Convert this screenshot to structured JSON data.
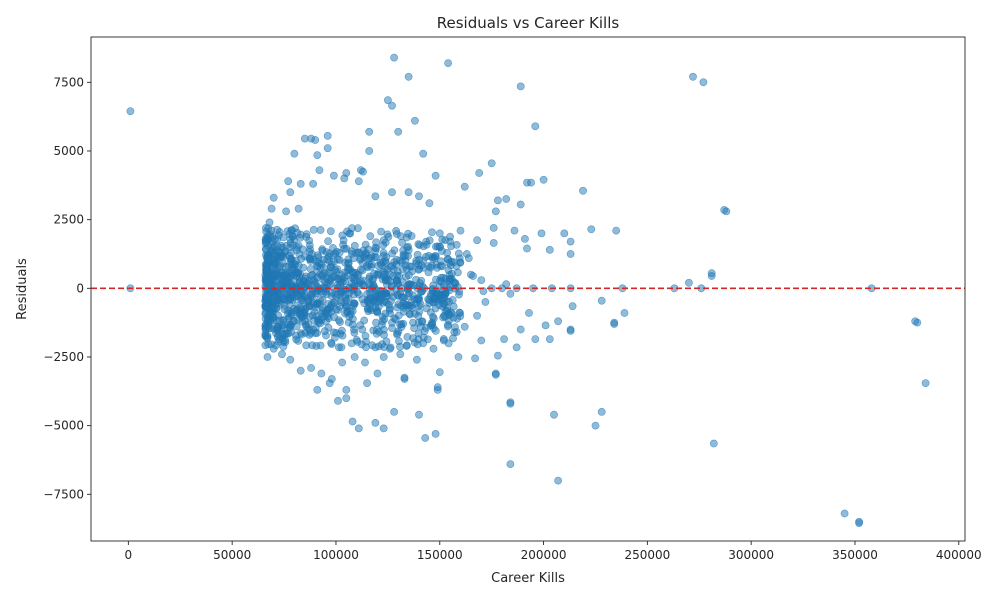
{
  "chart_data": {
    "type": "scatter",
    "title": "Residuals vs Career Kills",
    "xlabel": "Career Kills",
    "ylabel": "Residuals",
    "xlim": [
      -18000,
      403000
    ],
    "ylim": [
      -9200,
      9150
    ],
    "xticks": [
      0,
      50000,
      100000,
      150000,
      200000,
      250000,
      300000,
      350000,
      400000
    ],
    "yticks": [
      -7500,
      -5000,
      -2500,
      0,
      2500,
      5000,
      7500
    ],
    "reference_line": {
      "y": 0,
      "style": "dashed",
      "color": "#d62728"
    },
    "grid": false,
    "point_color": "#1f77b4",
    "point_alpha": 0.5,
    "points": [
      [
        1000,
        6450
      ],
      [
        1000,
        0
      ],
      [
        272000,
        7700
      ],
      [
        277000,
        7500
      ],
      [
        287000,
        2850
      ],
      [
        288000,
        2800
      ],
      [
        281000,
        550
      ],
      [
        281000,
        450
      ],
      [
        270000,
        200
      ],
      [
        263000,
        0
      ],
      [
        276000,
        0
      ],
      [
        358000,
        0
      ],
      [
        379000,
        -1200
      ],
      [
        380000,
        -1250
      ],
      [
        384000,
        -3450
      ],
      [
        282000,
        -5650
      ],
      [
        345000,
        -8200
      ],
      [
        352000,
        -8550
      ],
      [
        352000,
        -8500
      ],
      [
        207000,
        -7000
      ],
      [
        184000,
        -6400
      ],
      [
        225000,
        -5000
      ],
      [
        228000,
        -4500
      ],
      [
        205000,
        -4600
      ],
      [
        184000,
        -4200
      ],
      [
        184000,
        -4150
      ],
      [
        148000,
        -5300
      ],
      [
        143000,
        -5450
      ],
      [
        140000,
        -4600
      ],
      [
        128000,
        -4500
      ],
      [
        123000,
        -5100
      ],
      [
        119000,
        -4900
      ],
      [
        111000,
        -5100
      ],
      [
        108000,
        -4850
      ],
      [
        128000,
        8400
      ],
      [
        154000,
        8200
      ],
      [
        135000,
        7700
      ],
      [
        189000,
        7350
      ],
      [
        125000,
        6850
      ],
      [
        127000,
        6650
      ],
      [
        138000,
        6100
      ],
      [
        196000,
        5900
      ],
      [
        130000,
        5700
      ],
      [
        116000,
        5700
      ],
      [
        96000,
        5550
      ],
      [
        85000,
        5450
      ],
      [
        88000,
        5450
      ],
      [
        90000,
        5400
      ],
      [
        96000,
        5100
      ],
      [
        116000,
        5000
      ],
      [
        142000,
        4900
      ],
      [
        80000,
        4900
      ],
      [
        91000,
        4850
      ],
      [
        175000,
        4550
      ],
      [
        148000,
        4100
      ],
      [
        169000,
        4200
      ],
      [
        200000,
        3950
      ],
      [
        192000,
        3850
      ],
      [
        194000,
        3850
      ],
      [
        219000,
        3550
      ],
      [
        162000,
        3700
      ],
      [
        182000,
        3250
      ],
      [
        178000,
        3200
      ],
      [
        189000,
        3050
      ],
      [
        177000,
        2800
      ],
      [
        186000,
        2100
      ],
      [
        199000,
        2000
      ],
      [
        210000,
        2000
      ],
      [
        223000,
        2150
      ],
      [
        235000,
        2100
      ],
      [
        168000,
        1750
      ],
      [
        176000,
        1650
      ],
      [
        191000,
        1800
      ],
      [
        213000,
        1700
      ],
      [
        213000,
        1250
      ],
      [
        203000,
        1400
      ],
      [
        192000,
        1450
      ],
      [
        164000,
        1100
      ],
      [
        204000,
        0
      ],
      [
        213000,
        0
      ],
      [
        238000,
        0
      ],
      [
        195000,
        0
      ],
      [
        187000,
        0
      ],
      [
        228000,
        -450
      ],
      [
        239000,
        -900
      ],
      [
        214000,
        -650
      ],
      [
        193000,
        -900
      ],
      [
        207000,
        -1200
      ],
      [
        201000,
        -1350
      ],
      [
        189000,
        -1500
      ],
      [
        213000,
        -1500
      ],
      [
        213000,
        -1550
      ],
      [
        234000,
        -1300
      ],
      [
        234000,
        -1250
      ],
      [
        203000,
        -1850
      ],
      [
        196000,
        -1850
      ],
      [
        181000,
        -1850
      ],
      [
        187000,
        -2150
      ],
      [
        178000,
        -2450
      ],
      [
        177000,
        -3100
      ],
      [
        177000,
        -3150
      ],
      [
        159000,
        -2500
      ],
      [
        167000,
        -2550
      ],
      [
        150000,
        -3050
      ],
      [
        149000,
        -3700
      ],
      [
        149000,
        -3600
      ],
      [
        133000,
        -3250
      ],
      [
        133000,
        -3300
      ],
      [
        120000,
        -3100
      ],
      [
        115000,
        -3450
      ],
      [
        105000,
        -3700
      ],
      [
        105000,
        -4000
      ],
      [
        101000,
        -4100
      ],
      [
        91000,
        -3700
      ],
      [
        97000,
        -3450
      ],
      [
        150000,
        2000
      ],
      [
        145000,
        3100
      ],
      [
        140000,
        3350
      ],
      [
        135000,
        3500
      ],
      [
        127000,
        3500
      ],
      [
        119000,
        3350
      ],
      [
        111000,
        3900
      ],
      [
        104000,
        4000
      ],
      [
        105000,
        4200
      ],
      [
        112000,
        4300
      ],
      [
        113000,
        4250
      ],
      [
        99000,
        4100
      ],
      [
        92000,
        4300
      ],
      [
        89000,
        3800
      ],
      [
        83000,
        3800
      ],
      [
        77000,
        3900
      ],
      [
        78000,
        3500
      ],
      [
        70000,
        3300
      ],
      [
        69000,
        2900
      ],
      [
        68000,
        2400
      ],
      [
        76000,
        2800
      ],
      [
        82000,
        2900
      ],
      [
        150000,
        1500
      ],
      [
        155000,
        1700
      ],
      [
        160000,
        2100
      ],
      [
        163000,
        1250
      ],
      [
        158000,
        800
      ],
      [
        165000,
        500
      ],
      [
        170000,
        300
      ],
      [
        172000,
        -500
      ],
      [
        168000,
        -1000
      ],
      [
        162000,
        -1400
      ],
      [
        170000,
        -1900
      ],
      [
        157000,
        -1600
      ],
      [
        152000,
        -1900
      ],
      [
        147000,
        -2200
      ],
      [
        142000,
        -2000
      ],
      [
        139000,
        -2600
      ],
      [
        134000,
        -2100
      ],
      [
        131000,
        -2400
      ],
      [
        126000,
        -2200
      ],
      [
        123000,
        -2500
      ],
      [
        119000,
        -2150
      ],
      [
        114000,
        -2700
      ],
      [
        109000,
        -2500
      ],
      [
        103000,
        -2700
      ],
      [
        98000,
        -3300
      ],
      [
        93000,
        -3100
      ],
      [
        88000,
        -2900
      ],
      [
        83000,
        -3000
      ],
      [
        78000,
        -2600
      ],
      [
        74000,
        -2400
      ],
      [
        70000,
        -2200
      ],
      [
        67000,
        -2500
      ],
      [
        67000,
        -1800
      ],
      [
        67000,
        -1200
      ],
      [
        67000,
        -700
      ],
      [
        67000,
        -300
      ],
      [
        67000,
        200
      ],
      [
        67000,
        700
      ],
      [
        67000,
        1200
      ],
      [
        67000,
        1800
      ],
      [
        68000,
        1900
      ],
      [
        66500,
        0
      ],
      [
        180000,
        0
      ],
      [
        175000,
        0
      ],
      [
        184000,
        -200
      ],
      [
        182000,
        150
      ],
      [
        176000,
        2200
      ],
      [
        171000,
        -100
      ],
      [
        166000,
        450
      ]
    ],
    "cluster": {
      "count": 1150,
      "x_range": [
        66000,
        160000
      ],
      "y_range": [
        -2200,
        2200
      ]
    }
  }
}
